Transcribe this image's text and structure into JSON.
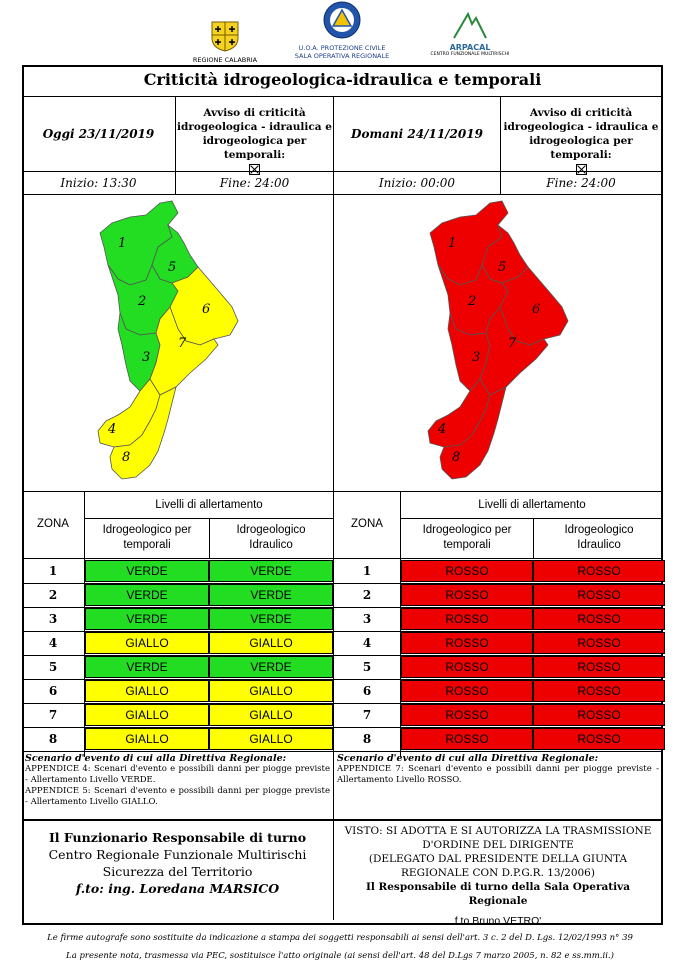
{
  "header": {
    "logo_left_caption": "REGIONE CALABRIA",
    "logo_center_caption_1": "U.O.A. PROTEZIONE CIVILE",
    "logo_center_caption_2": "SALA OPERATIVA REGIONALE",
    "logo_right_caption_1": "ARPACAL",
    "logo_right_caption_2": "CENTRO FUNZIONALE MULTIRISCHI"
  },
  "title": "Criticità idrogeologica-idraulica e temporali",
  "today": {
    "date_label": "Oggi 23/11/2019",
    "avviso": "Avviso di criticità idrogeologica - idraulica e idrogeologica per temporali:",
    "inizio": "Inizio: 13:30",
    "fine": "Fine: 24:00"
  },
  "tomorrow": {
    "date_label": "Domani 24/11/2019",
    "avviso": "Avviso di criticità idrogeologica - idraulica e idrogeologica per temporali:",
    "inizio": "Inizio: 00:00",
    "fine": "Fine: 24:00"
  },
  "colors": {
    "verde": "#22dd22",
    "giallo": "#ffff00",
    "rosso": "#ee0000"
  },
  "table_headers": {
    "zona": "ZONA",
    "livelli": "Livelli di allertamento",
    "col1": "Idrogeologico per temporali",
    "col2": "Idrogeologico Idraulico"
  },
  "today_table": [
    {
      "zona": "1",
      "col1": "VERDE",
      "col2": "VERDE"
    },
    {
      "zona": "2",
      "col1": "VERDE",
      "col2": "VERDE"
    },
    {
      "zona": "3",
      "col1": "VERDE",
      "col2": "VERDE"
    },
    {
      "zona": "4",
      "col1": "GIALLO",
      "col2": "GIALLO"
    },
    {
      "zona": "5",
      "col1": "VERDE",
      "col2": "VERDE"
    },
    {
      "zona": "6",
      "col1": "GIALLO",
      "col2": "GIALLO"
    },
    {
      "zona": "7",
      "col1": "GIALLO",
      "col2": "GIALLO"
    },
    {
      "zona": "8",
      "col1": "GIALLO",
      "col2": "GIALLO"
    }
  ],
  "tomorrow_table": [
    {
      "zona": "1",
      "col1": "ROSSO",
      "col2": "ROSSO"
    },
    {
      "zona": "2",
      "col1": "ROSSO",
      "col2": "ROSSO"
    },
    {
      "zona": "3",
      "col1": "ROSSO",
      "col2": "ROSSO"
    },
    {
      "zona": "4",
      "col1": "ROSSO",
      "col2": "ROSSO"
    },
    {
      "zona": "5",
      "col1": "ROSSO",
      "col2": "ROSSO"
    },
    {
      "zona": "6",
      "col1": "ROSSO",
      "col2": "ROSSO"
    },
    {
      "zona": "7",
      "col1": "ROSSO",
      "col2": "ROSSO"
    },
    {
      "zona": "8",
      "col1": "ROSSO",
      "col2": "ROSSO"
    }
  ],
  "map_zone_colors_today": {
    "1": "verde",
    "2": "verde",
    "3": "verde",
    "4": "giallo",
    "5": "verde",
    "6": "giallo",
    "7": "giallo",
    "8": "giallo"
  },
  "map_zone_colors_tomorrow": {
    "1": "rosso",
    "2": "rosso",
    "3": "rosso",
    "4": "rosso",
    "5": "rosso",
    "6": "rosso",
    "7": "rosso",
    "8": "rosso"
  },
  "scenario_today": {
    "title": "Scenario d'evento di cui alla Direttiva Regionale:",
    "line1": "APPENDICE 4: Scenari d'evento e possibili danni per piogge previste - Allertamento Livello VERDE.",
    "line2": "APPENDICE 5: Scenari d'evento e possibili danni per piogge previste - Allertamento Livello GIALLO."
  },
  "scenario_tomorrow": {
    "title": "Scenario d'evento di cui alla Direttiva Regionale:",
    "line1": "APPENDICE 7: Scenari d'evento e possibili danni per piogge previste - Allertamento Livello ROSSO."
  },
  "signature_left": {
    "line1": "Il Funzionario Responsabile di turno",
    "line2": "Centro Regionale Funzionale Multirischi",
    "line3": "Sicurezza del Territorio",
    "line4": "f.to: ing. Loredana MARSICO"
  },
  "signature_right": {
    "line1": "VISTO: SI ADOTTA E SI AUTORIZZA LA TRASMISSIONE",
    "line2": "D'ORDINE DEL DIRIGENTE",
    "line3": "(DELEGATO DAL PRESIDENTE DELLA GIUNTA",
    "line4": "REGIONALE CON D.P.G.R. 13/2006)",
    "line5": "Il Responsabile di turno della Sala Operativa Regionale",
    "line6": "f.to Bruno VETRO'"
  },
  "footer": {
    "line1": "Le firme autografe sono sostituite da indicazione a stampa dei soggetti responsabili ai sensi dell'art. 3 c. 2 del D. Lgs. 12/02/1993 n° 39",
    "line2": "La presente nota, trasmessa via PEC, sostituisce l'atto originale (ai sensi dell'art. 48 del D.Lgs 7 marzo 2005, n. 82 e ss.mm.ii.)"
  }
}
